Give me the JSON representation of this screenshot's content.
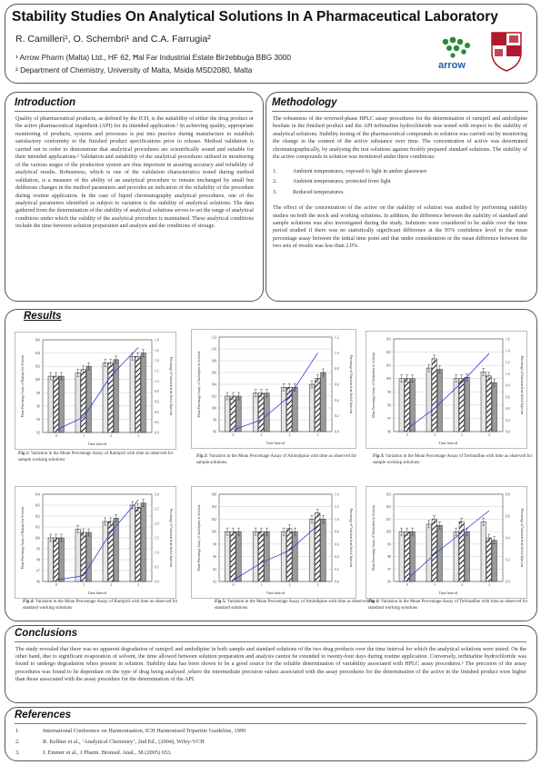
{
  "header": {
    "title": "Stability Studies On Analytical Solutions In A Pharmaceutical Laboratory",
    "authors": "R. Camilleri¹, O. Schembri¹ and C.A. Farrugia²",
    "affiliation_1": "¹ Arrow Pharm (Malta) Ltd., HF 62, Ħal Far Industrial Estate Birżebbuġa BBG 3000",
    "affiliation_2": "² Department of Chemistry, University of Malta, Msida MSD2080, Malta",
    "logo_1_text": "arrow"
  },
  "introduction": {
    "heading": "Introduction",
    "text": "Quality of pharmaceutical products, as defined by the ICH, is the suitability of either the drug product or the active pharmaceutical ingredient (API) for its intended application.¹ In achieving quality, appropriate monitoring of products, systems and processes is put into practice during manufacture to establish satisfactory conformity to the finished product specifications prior to release. Method validation is carried out in order to demonstrate that analytical procedures are scientifically sound and suitable for their intended applications.² Validation and suitability of the analytical procedures utilised in monitoring of the various stages of the production system are thus important in assuring accuracy and reliability of analytical results. Robustness, which is one of the validation characteristics tested during method validation, is a measure of the ability of an analytical procedure to remain unchanged by small but deliberate changes in the method parameters and provides an indication of the reliability of the procedure during routine application. In the case of liquid chromatography analytical procedures, one of the analytical parameters identified as subject to variation is the stability of analytical solutions. The data gathered from the determination of the stability of analytical solutions serves to set the range of analytical conditions under which the validity of the analytical procedure is maintained. These analytical conditions include the time between solution preparation and analysis and the conditions of storage."
  },
  "methodology": {
    "heading": "Methodology",
    "para1": "The robustness of the reversed-phase HPLC assay procedures for the determination of ramipril and amlodipine besilate in the finished product and the API terbinafine hydrochloride was tested with respect to the stability of analytical solutions. Stability testing of the pharmaceutical compounds in solution was carried out by monitoring the change in the content of the active substance over time. The concentration of active was determined chromatographically, by analysing the test solutions against freshly prepared standard solutions. The stability of the active compounds in solution was monitored under three conditions:",
    "conditions": [
      {
        "n": "1.",
        "text": "Ambient temperatures, exposed to light in amber glassware"
      },
      {
        "n": "2.",
        "text": "Ambient temperatures, protected from light"
      },
      {
        "n": "3.",
        "text": "Reduced temperatures."
      }
    ],
    "para2": "The effect of the concentration of the active on the stability of solution was studied by performing stability studies on both the stock and working solutions. In addition, the difference between the stability of standard and sample solutions was also investigated during the study. Solutions were considered to be stable over the time period studied if there was no statistically significant difference at the 95% confidence level in the mean percentage assay between the initial time point and that under consideration or the mean difference between the two sets of results was less than 2.0%."
  },
  "results": {
    "heading": "Results",
    "figures": [
      {
        "cap_label": "Fig 1:",
        "cap_text": "Variation in the Mean Percentage Assay of Ramipril with time as observed for sample working solutions",
        "ylabel": "Mean Percentage Assay of Ramipril in Solution",
        "y2label": "Percentage of Variation from Initial Injection",
        "xlabel": "Time Interval",
        "yticks": [
          "106",
          "104",
          "102",
          "100",
          "98",
          "96",
          "94",
          "92"
        ],
        "y2ticks": [
          "1.8",
          "1.6",
          "1.4",
          "1.2",
          "1.0",
          "0.8",
          "0.6",
          "0.4",
          "0.2",
          "0.0"
        ],
        "xticks": [
          "0",
          "1",
          "2",
          "3"
        ]
      },
      {
        "cap_label": "Fig 2:",
        "cap_text": "Variation in the Mean Percentage Assay of Amlodipine with time as observed for sample solutions",
        "ylabel": "Mean Percentage Assay of Amlodipine in Solution",
        "y2label": "Percentage of Variation from Initial Injection",
        "xlabel": "Time Interval",
        "yticks": [
          "112",
          "110",
          "108",
          "106",
          "104",
          "102",
          "100",
          "98",
          "96"
        ],
        "y2ticks": [
          "1.2",
          "1.0",
          "0.8",
          "0.6",
          "0.4",
          "0.2",
          "0.0"
        ],
        "xticks": [
          "0",
          "1",
          "2",
          "3"
        ]
      },
      {
        "cap_label": "Fig 3:",
        "cap_text": "Variation in the Mean Percentage Assay of Terbinafine with time as observed for sample working solutions",
        "ylabel": "Mean Percentage Assay of Terbinafine in Solution",
        "y2label": "Percentage of Variation from Initial Injection",
        "xlabel": "Time Interval",
        "yticks": [
          "103",
          "102",
          "101",
          "100",
          "99",
          "98",
          "97",
          "96"
        ],
        "y2ticks": [
          "1.6",
          "1.4",
          "1.2",
          "1.0",
          "0.8",
          "0.6",
          "0.4",
          "0.2",
          "0.0"
        ],
        "xticks": [
          "0",
          "1",
          "2",
          "3"
        ]
      },
      {
        "cap_label": "Fig 4:",
        "cap_text": "Variation in the Mean Percentage Assay of Ramipril with time as observed for standard working solutions",
        "ylabel": "Mean Percentage Assay of Ramipril in Solution",
        "y2label": "Percentage of Variation from Initial Injection",
        "xlabel": "Time Interval",
        "yticks": [
          "104",
          "103",
          "102",
          "101",
          "100",
          "99",
          "98",
          "97",
          "96"
        ],
        "y2ticks": [
          "3.0",
          "2.5",
          "2.0",
          "1.5",
          "1.0",
          "0.5",
          "0.0"
        ],
        "xticks": [
          "0",
          "1",
          "2",
          "3"
        ]
      },
      {
        "cap_label": "Fig 5:",
        "cap_text": "Variation in the Mean Percentage Assay of Amlodipine with time as observed for standard solutions",
        "ylabel": "Mean Percentage Assay of Amlodipine in Solution",
        "y2label": "Percentage of Variation from Initial Injection",
        "xlabel": "Time Interval",
        "yticks": [
          "106",
          "104",
          "102",
          "100",
          "98",
          "96",
          "94",
          "92"
        ],
        "y2ticks": [
          "1.4",
          "1.2",
          "1.0",
          "0.8",
          "0.6",
          "0.4",
          "0.2",
          "0.0"
        ],
        "xticks": [
          "0",
          "1",
          "2",
          "3"
        ]
      },
      {
        "cap_label": "Fig 6:",
        "cap_text": "Variation in the Mean Percentage Assay of Terbinafine with time as observed for standard working solutions",
        "ylabel": "Mean Percentage Assay of Terbinafine in Solution",
        "y2label": "Percentage of Variation from Initial Injection",
        "xlabel": "Time Interval",
        "yticks": [
          "103",
          "102",
          "101",
          "100",
          "99",
          "98",
          "97",
          "96"
        ],
        "y2ticks": [
          "0.8",
          "0.6",
          "0.4",
          "0.2",
          "0.0"
        ],
        "xticks": [
          "0",
          "1",
          "2",
          "3"
        ]
      }
    ]
  },
  "chart_data": [
    {
      "type": "bar",
      "ylim": [
        92,
        106
      ],
      "y2lim": [
        0,
        1.8
      ],
      "categories": [
        "0",
        "1",
        "2",
        "3"
      ],
      "series": [
        {
          "values": [
            100.5,
            101,
            102.5,
            103.5
          ]
        },
        {
          "values": [
            100.5,
            101.5,
            102.5,
            103.5
          ]
        },
        {
          "values": [
            100.5,
            102,
            103,
            104
          ]
        }
      ],
      "line": [
        0.05,
        0.3,
        1.1,
        1.65
      ]
    },
    {
      "type": "bar",
      "ylim": [
        96,
        112
      ],
      "y2lim": [
        0,
        1.2
      ],
      "categories": [
        "0",
        "1",
        "2",
        "3"
      ],
      "series": [
        {
          "values": [
            102,
            102.5,
            103.5,
            104
          ]
        },
        {
          "values": [
            102,
            102.5,
            103.5,
            105
          ]
        },
        {
          "values": [
            102,
            102.5,
            103.5,
            106
          ]
        }
      ],
      "line": [
        0.02,
        0.15,
        0.45,
        1.0
      ]
    },
    {
      "type": "bar",
      "ylim": [
        96,
        103
      ],
      "y2lim": [
        0,
        1.6
      ],
      "categories": [
        "0",
        "1",
        "2",
        "3"
      ],
      "series": [
        {
          "values": [
            100,
            100.8,
            100,
            100.5
          ]
        },
        {
          "values": [
            100,
            101.5,
            100,
            100.2
          ]
        },
        {
          "values": [
            100,
            100.7,
            100.1,
            99.7
          ]
        }
      ],
      "line": [
        0.05,
        0.4,
        0.85,
        1.35
      ]
    },
    {
      "type": "bar",
      "ylim": [
        96,
        104
      ],
      "y2lim": [
        0,
        3.0
      ],
      "categories": [
        "0",
        "1",
        "2",
        "3"
      ],
      "series": [
        {
          "values": [
            100,
            100.8,
            101.5,
            103
          ]
        },
        {
          "values": [
            100,
            100.5,
            101.5,
            102.8
          ]
        },
        {
          "values": [
            100,
            100.5,
            101.8,
            103.2
          ]
        }
      ],
      "line": [
        0.05,
        0.2,
        1.7,
        2.8
      ]
    },
    {
      "type": "bar",
      "ylim": [
        92,
        106
      ],
      "y2lim": [
        0,
        1.4
      ],
      "categories": [
        "0",
        "1",
        "2",
        "3"
      ],
      "series": [
        {
          "values": [
            100,
            100,
            100,
            102
          ]
        },
        {
          "values": [
            100,
            100,
            100.5,
            103
          ]
        },
        {
          "values": [
            100,
            100,
            100,
            102
          ]
        }
      ],
      "line": [
        0.02,
        0.3,
        0.5,
        0.9
      ]
    },
    {
      "type": "bar",
      "ylim": [
        96,
        103
      ],
      "y2lim": [
        0,
        0.8
      ],
      "categories": [
        "0",
        "1",
        "2",
        "3"
      ],
      "series": [
        {
          "values": [
            100,
            100.6,
            100,
            100.8
          ]
        },
        {
          "values": [
            100,
            101,
            100.8,
            99.5
          ]
        },
        {
          "values": [
            100,
            100.5,
            100,
            99.3
          ]
        }
      ],
      "line": [
        0.02,
        0.25,
        0.45,
        0.65
      ]
    }
  ],
  "conclusions": {
    "heading": "Conclusions",
    "text": "The study revealed that there was no apparent degradation of ramipril and amlodipine in both sample and standard solutions of the two drug products over the time interval for which the analytical solutions were tested. On the other hand, due to significant evaporation of solvent, the time allowed between solution preparation and analysis cannot be extended to twenty-four days during routine application. Conversely, terbinafine hydrochloride was found to undergo degradation when present in solution. Stability data has been shown to be a good source for the reliable determination of variability associated with HPLC assay procedures.³ The precision of the assay procedures was found to be dependant on the type of drug being analysed ,where the intermediate precision values associated with the assay procedures for the determination of the active in the finished product were higher than those associated with the assay procedure for the determination of the API."
  },
  "references": {
    "heading": "References",
    "items": [
      {
        "n": "1.",
        "text": "International Conference on Harmonisation, ICH Harmonised Tripartite Guideline, 1999"
      },
      {
        "n": "2.",
        "text": "R. Kellner et al., ‘Analytical Chemistry’, 2nd Ed., (2004), Wiley-VCH"
      },
      {
        "n": "3.",
        "text": "J. Emmer et al., J Pharm. Biomed. Anal., 38 (2005) 653."
      }
    ]
  },
  "colors": {
    "line": "#2b3fd6",
    "bar_light": "#e6e6e6",
    "bar_grey": "#9a9a9a",
    "border": "#555555"
  }
}
